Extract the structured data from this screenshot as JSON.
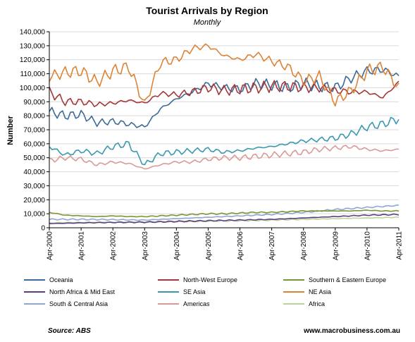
{
  "chart_data": {
    "type": "line",
    "title": "Tourist Arrivals by Region",
    "subtitle": "Monthly",
    "ylabel": "Number",
    "ylim": [
      0,
      140000
    ],
    "yticks": [
      0,
      10000,
      20000,
      30000,
      40000,
      50000,
      60000,
      70000,
      80000,
      90000,
      100000,
      110000,
      120000,
      130000,
      140000
    ],
    "ytick_labels": [
      "0",
      "10,000",
      "20,000",
      "30,000",
      "40,000",
      "50,000",
      "60,000",
      "70,000",
      "80,000",
      "90,000",
      "100,000",
      "110,000",
      "120,000",
      "130,000",
      "140,000"
    ],
    "xtick_labels": [
      "Apr-2000",
      "Apr-2001",
      "Apr-2002",
      "Apr-2003",
      "Apr-2004",
      "Apr-2005",
      "Apr-2006",
      "Apr-2007",
      "Apr-2008",
      "Apr-2009",
      "Apr-2010",
      "Apr-2011"
    ],
    "x_start": "2000-04",
    "n_months": 133,
    "grid": "horizontal",
    "legend_position": "bottom",
    "series": [
      {
        "name": "Oceania",
        "color": "#3d6a97",
        "points": [
          [
            0,
            83000
          ],
          [
            6,
            80000
          ],
          [
            12,
            81000
          ],
          [
            18,
            75000
          ],
          [
            24,
            76000
          ],
          [
            30,
            74000
          ],
          [
            36,
            72000
          ],
          [
            42,
            85000
          ],
          [
            48,
            92000
          ],
          [
            54,
            97000
          ],
          [
            60,
            103000
          ],
          [
            66,
            100000
          ],
          [
            72,
            99000
          ],
          [
            78,
            103000
          ],
          [
            84,
            102000
          ],
          [
            90,
            100000
          ],
          [
            96,
            103000
          ],
          [
            102,
            101000
          ],
          [
            108,
            100000
          ],
          [
            114,
            107000
          ],
          [
            120,
            112000
          ],
          [
            126,
            113000
          ],
          [
            132,
            108000
          ]
        ]
      },
      {
        "name": "North-West Europe",
        "color": "#a3373a",
        "points": [
          [
            0,
            97000
          ],
          [
            6,
            90000
          ],
          [
            12,
            90000
          ],
          [
            18,
            88000
          ],
          [
            24,
            89000
          ],
          [
            30,
            91000
          ],
          [
            36,
            89000
          ],
          [
            42,
            96000
          ],
          [
            48,
            95000
          ],
          [
            54,
            97000
          ],
          [
            60,
            100000
          ],
          [
            66,
            98000
          ],
          [
            72,
            99000
          ],
          [
            78,
            100000
          ],
          [
            84,
            101000
          ],
          [
            90,
            101000
          ],
          [
            96,
            100000
          ],
          [
            102,
            100000
          ],
          [
            108,
            98000
          ],
          [
            114,
            97000
          ],
          [
            120,
            97000
          ],
          [
            126,
            93000
          ],
          [
            132,
            104000
          ]
        ]
      },
      {
        "name": "Southern & Eastern Europe",
        "color": "#7a9636",
        "points": [
          [
            0,
            11000
          ],
          [
            6,
            9000
          ],
          [
            12,
            8500
          ],
          [
            18,
            8000
          ],
          [
            24,
            8500
          ],
          [
            30,
            8000
          ],
          [
            36,
            8000
          ],
          [
            42,
            8500
          ],
          [
            48,
            9000
          ],
          [
            54,
            9500
          ],
          [
            60,
            10000
          ],
          [
            66,
            10000
          ],
          [
            72,
            10500
          ],
          [
            78,
            11000
          ],
          [
            84,
            11000
          ],
          [
            90,
            11500
          ],
          [
            96,
            12000
          ],
          [
            102,
            12000
          ],
          [
            108,
            12000
          ],
          [
            114,
            12000
          ],
          [
            120,
            12500
          ],
          [
            126,
            12000
          ],
          [
            132,
            12000
          ]
        ]
      },
      {
        "name": "North Africa & Mid East",
        "color": "#5b3e80",
        "points": [
          [
            0,
            3000
          ],
          [
            12,
            3500
          ],
          [
            24,
            3800
          ],
          [
            36,
            4000
          ],
          [
            48,
            4500
          ],
          [
            60,
            5000
          ],
          [
            72,
            5500
          ],
          [
            84,
            6000
          ],
          [
            96,
            7000
          ],
          [
            108,
            8000
          ],
          [
            120,
            9000
          ],
          [
            132,
            9500
          ]
        ]
      },
      {
        "name": "SE Asia",
        "color": "#3a99ad",
        "points": [
          [
            0,
            58000
          ],
          [
            6,
            52000
          ],
          [
            12,
            55000
          ],
          [
            18,
            53000
          ],
          [
            24,
            58000
          ],
          [
            30,
            60000
          ],
          [
            36,
            45000
          ],
          [
            42,
            53000
          ],
          [
            48,
            54000
          ],
          [
            54,
            55000
          ],
          [
            60,
            56000
          ],
          [
            66,
            54000
          ],
          [
            72,
            55000
          ],
          [
            78,
            57000
          ],
          [
            84,
            58000
          ],
          [
            90,
            60000
          ],
          [
            96,
            62000
          ],
          [
            102,
            63000
          ],
          [
            108,
            64000
          ],
          [
            114,
            67000
          ],
          [
            120,
            72000
          ],
          [
            126,
            74000
          ],
          [
            132,
            78000
          ]
        ]
      },
      {
        "name": "NE Asia",
        "color": "#dc8436",
        "points": [
          [
            0,
            108000
          ],
          [
            6,
            111000
          ],
          [
            12,
            112000
          ],
          [
            18,
            104000
          ],
          [
            24,
            112000
          ],
          [
            30,
            115000
          ],
          [
            36,
            88000
          ],
          [
            42,
            118000
          ],
          [
            48,
            120000
          ],
          [
            54,
            128000
          ],
          [
            60,
            130000
          ],
          [
            66,
            123000
          ],
          [
            72,
            120000
          ],
          [
            78,
            124000
          ],
          [
            84,
            119000
          ],
          [
            90,
            115000
          ],
          [
            96,
            105000
          ],
          [
            102,
            108000
          ],
          [
            108,
            90000
          ],
          [
            114,
            98000
          ],
          [
            120,
            112000
          ],
          [
            126,
            115000
          ],
          [
            132,
            100000
          ]
        ]
      },
      {
        "name": "South & Central Asia",
        "color": "#8ea6d0",
        "points": [
          [
            0,
            6000
          ],
          [
            12,
            6000
          ],
          [
            24,
            5800
          ],
          [
            36,
            5500
          ],
          [
            48,
            6500
          ],
          [
            60,
            7500
          ],
          [
            72,
            8500
          ],
          [
            84,
            9500
          ],
          [
            96,
            11000
          ],
          [
            108,
            13000
          ],
          [
            120,
            14500
          ],
          [
            132,
            16000
          ]
        ]
      },
      {
        "name": "Americas",
        "color": "#d99a97",
        "points": [
          [
            0,
            48000
          ],
          [
            6,
            50000
          ],
          [
            12,
            49000
          ],
          [
            18,
            45000
          ],
          [
            24,
            47000
          ],
          [
            30,
            46000
          ],
          [
            36,
            42000
          ],
          [
            42,
            45000
          ],
          [
            48,
            47000
          ],
          [
            54,
            47000
          ],
          [
            60,
            49000
          ],
          [
            66,
            50000
          ],
          [
            72,
            50000
          ],
          [
            78,
            51000
          ],
          [
            84,
            52000
          ],
          [
            90,
            53000
          ],
          [
            96,
            54000
          ],
          [
            102,
            56000
          ],
          [
            108,
            57000
          ],
          [
            114,
            58000
          ],
          [
            120,
            56000
          ],
          [
            126,
            55000
          ],
          [
            132,
            56000
          ]
        ]
      },
      {
        "name": "Africa",
        "color": "#bdd39b",
        "points": [
          [
            0,
            3500
          ],
          [
            12,
            3800
          ],
          [
            24,
            4000
          ],
          [
            36,
            4000
          ],
          [
            48,
            4500
          ],
          [
            60,
            4800
          ],
          [
            72,
            5000
          ],
          [
            84,
            5500
          ],
          [
            96,
            6000
          ],
          [
            108,
            6500
          ],
          [
            120,
            7000
          ],
          [
            132,
            7500
          ]
        ]
      }
    ],
    "source": "Source: ABS",
    "website": "www.macrobusiness.com.au"
  }
}
